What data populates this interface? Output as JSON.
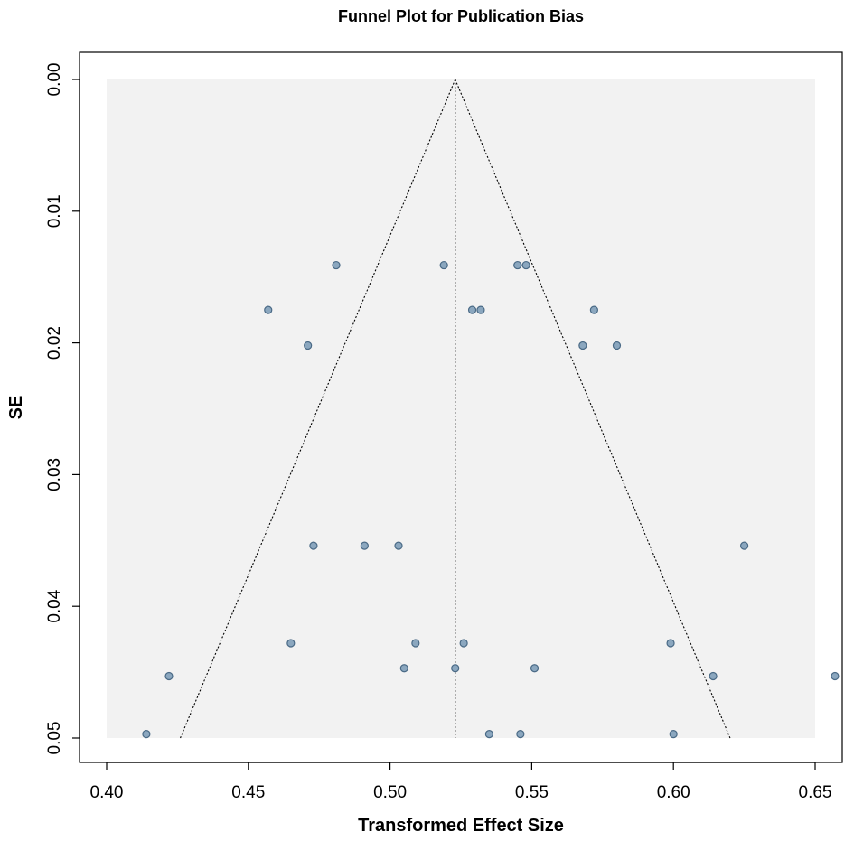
{
  "chart_data": {
    "type": "scatter",
    "title": "Funnel Plot for Publication Bias",
    "xlabel": "Transformed Effect Size",
    "ylabel": "SE",
    "xlim": [
      0.39,
      0.66
    ],
    "ylim": [
      0.0,
      0.05
    ],
    "y_axis_inverted": true,
    "x_ticks": [
      "0.40",
      "0.45",
      "0.50",
      "0.55",
      "0.60",
      "0.65"
    ],
    "x_tick_values": [
      0.4,
      0.45,
      0.5,
      0.55,
      0.6,
      0.65
    ],
    "y_ticks": [
      "0.00",
      "0.01",
      "0.02",
      "0.03",
      "0.04",
      "0.05"
    ],
    "y_tick_values": [
      0.0,
      0.01,
      0.02,
      0.03,
      0.04,
      0.05
    ],
    "grid": false,
    "funnel": {
      "center": 0.523,
      "left_at_max_se": 0.426,
      "right_at_max_se": 0.62,
      "max_se": 0.05
    },
    "points": [
      {
        "x": 0.481,
        "y": 0.0141
      },
      {
        "x": 0.519,
        "y": 0.0141
      },
      {
        "x": 0.545,
        "y": 0.0141
      },
      {
        "x": 0.548,
        "y": 0.0141
      },
      {
        "x": 0.457,
        "y": 0.0175
      },
      {
        "x": 0.529,
        "y": 0.0175
      },
      {
        "x": 0.532,
        "y": 0.0175
      },
      {
        "x": 0.572,
        "y": 0.0175
      },
      {
        "x": 0.471,
        "y": 0.0202
      },
      {
        "x": 0.568,
        "y": 0.0202
      },
      {
        "x": 0.58,
        "y": 0.0202
      },
      {
        "x": 0.473,
        "y": 0.0354
      },
      {
        "x": 0.491,
        "y": 0.0354
      },
      {
        "x": 0.503,
        "y": 0.0354
      },
      {
        "x": 0.625,
        "y": 0.0354
      },
      {
        "x": 0.465,
        "y": 0.0428
      },
      {
        "x": 0.509,
        "y": 0.0428
      },
      {
        "x": 0.526,
        "y": 0.0428
      },
      {
        "x": 0.599,
        "y": 0.0428
      },
      {
        "x": 0.422,
        "y": 0.0453
      },
      {
        "x": 0.614,
        "y": 0.0453
      },
      {
        "x": 0.657,
        "y": 0.0453
      },
      {
        "x": 0.505,
        "y": 0.0447
      },
      {
        "x": 0.523,
        "y": 0.0447
      },
      {
        "x": 0.551,
        "y": 0.0447
      },
      {
        "x": 0.414,
        "y": 0.0497
      },
      {
        "x": 0.535,
        "y": 0.0497
      },
      {
        "x": 0.546,
        "y": 0.0497
      },
      {
        "x": 0.6,
        "y": 0.0497
      }
    ],
    "colors": {
      "point_fill": "#8ba7bf",
      "point_stroke": "#4a6a86",
      "funnel_region": "#f2f2f2",
      "lines": "#000000"
    }
  }
}
